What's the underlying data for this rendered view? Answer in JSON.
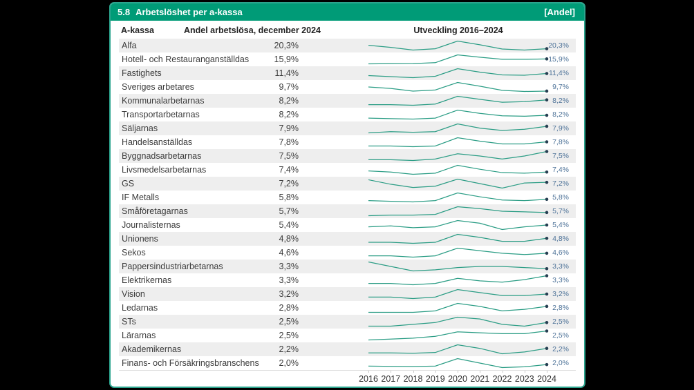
{
  "header": {
    "number": "5.8",
    "title": "Arbetslöshet per a-kassa",
    "unit_tag": "[Andel]"
  },
  "colors": {
    "header_bar": "#009b77",
    "card_border": "#2ca48e",
    "stripe": "#eeeeee",
    "spark_line": "#2b9d85",
    "spark_dot": "#263f52",
    "value_label_blue": "#4d7298"
  },
  "chart_data": {
    "type": "table",
    "title": "5.8 Arbetslöshet per a-kassa",
    "unit_note": "[Andel]",
    "columns": [
      "A-kassa",
      "Andel arbetslösa, december 2024",
      "Utveckling 2016–2024"
    ],
    "x": [
      "2016",
      "2017",
      "2018",
      "2019",
      "2020",
      "2021",
      "2022",
      "2023",
      "2024"
    ],
    "sparkline_type": "line",
    "rows": [
      {
        "name": "Alfa",
        "value_label": "20,3%",
        "value": 20.3,
        "series": [
          21.6,
          20.8,
          19.8,
          20.3,
          23.2,
          21.8,
          20.2,
          19.8,
          20.3
        ]
      },
      {
        "name": "Hotell- och Restauranganställdas",
        "value_label": "15,9%",
        "value": 15.9,
        "series": [
          12.1,
          12.2,
          12.3,
          13.0,
          19.0,
          17.2,
          15.6,
          15.6,
          15.9
        ]
      },
      {
        "name": "Fastighets",
        "value_label": "11,4%",
        "value": 11.4,
        "series": [
          10.8,
          10.5,
          10.2,
          10.6,
          12.8,
          11.8,
          11.0,
          10.9,
          11.4
        ]
      },
      {
        "name": "Sveriges arbetares",
        "value_label": "9,7%",
        "value": 9.7,
        "series": [
          10.8,
          10.4,
          9.7,
          10.0,
          12.0,
          11.0,
          9.9,
          9.6,
          9.7
        ]
      },
      {
        "name": "Kommunalarbetarnas",
        "value_label": "8,2%",
        "value": 8.2,
        "series": [
          7.4,
          7.4,
          7.3,
          7.5,
          8.8,
          8.3,
          7.8,
          7.9,
          8.2
        ]
      },
      {
        "name": "Transportarbetarnas",
        "value_label": "8,2%",
        "value": 8.2,
        "series": [
          7.6,
          7.5,
          7.4,
          7.6,
          9.3,
          8.6,
          8.1,
          8.0,
          8.2
        ]
      },
      {
        "name": "Säljarnas",
        "value_label": "7,9%",
        "value": 7.9,
        "series": [
          6.8,
          7.0,
          6.9,
          7.0,
          8.3,
          7.6,
          7.2,
          7.4,
          7.9
        ]
      },
      {
        "name": "Handelsanställdas",
        "value_label": "7,8%",
        "value": 7.8,
        "series": [
          7.2,
          7.2,
          7.1,
          7.2,
          8.4,
          7.9,
          7.5,
          7.5,
          7.8
        ]
      },
      {
        "name": "Byggnadsarbetarnas",
        "value_label": "7,5%",
        "value": 7.5,
        "series": [
          6.4,
          6.4,
          6.3,
          6.5,
          7.2,
          6.9,
          6.5,
          6.9,
          7.5
        ]
      },
      {
        "name": "Livsmedelsarbetarnas",
        "value_label": "7,4%",
        "value": 7.4,
        "series": [
          7.6,
          7.4,
          7.0,
          7.2,
          8.6,
          7.9,
          7.3,
          7.2,
          7.4
        ]
      },
      {
        "name": "GS",
        "value_label": "7,2%",
        "value": 7.2,
        "series": [
          7.6,
          6.9,
          6.4,
          6.6,
          7.7,
          7.0,
          6.3,
          7.1,
          7.2
        ]
      },
      {
        "name": "IF Metalls",
        "value_label": "5,8%",
        "value": 5.8,
        "series": [
          5.6,
          5.5,
          5.4,
          5.6,
          6.8,
          6.2,
          5.7,
          5.6,
          5.8
        ]
      },
      {
        "name": "Småföretagarnas",
        "value_label": "5,7%",
        "value": 5.7,
        "series": [
          5.2,
          5.3,
          5.3,
          5.4,
          6.6,
          6.3,
          5.9,
          5.8,
          5.7
        ]
      },
      {
        "name": "Journalisternas",
        "value_label": "5,4%",
        "value": 5.4,
        "series": [
          5.2,
          5.3,
          5.1,
          5.2,
          5.9,
          5.6,
          4.9,
          5.2,
          5.4
        ]
      },
      {
        "name": "Unionens",
        "value_label": "4,8%",
        "value": 4.8,
        "series": [
          4.4,
          4.4,
          4.3,
          4.4,
          5.2,
          4.9,
          4.5,
          4.5,
          4.8
        ]
      },
      {
        "name": "Sekos",
        "value_label": "4,6%",
        "value": 4.6,
        "series": [
          4.4,
          4.4,
          4.3,
          4.4,
          5.0,
          4.8,
          4.6,
          4.5,
          4.6
        ]
      },
      {
        "name": "Pappersindustriarbetarnas",
        "value_label": "3,3%",
        "value": 3.3,
        "series": [
          3.9,
          3.5,
          3.1,
          3.2,
          3.4,
          3.5,
          3.5,
          3.4,
          3.3
        ]
      },
      {
        "name": "Elektrikernas",
        "value_label": "3,3%",
        "value": 3.3,
        "series": [
          2.7,
          2.7,
          2.6,
          2.7,
          3.1,
          2.9,
          2.8,
          3.0,
          3.3
        ]
      },
      {
        "name": "Vision",
        "value_label": "3,2%",
        "value": 3.2,
        "series": [
          3.0,
          3.0,
          2.9,
          3.0,
          3.5,
          3.3,
          3.1,
          3.1,
          3.2
        ]
      },
      {
        "name": "Ledarnas",
        "value_label": "2,8%",
        "value": 2.8,
        "series": [
          2.4,
          2.4,
          2.4,
          2.5,
          3.0,
          2.8,
          2.5,
          2.6,
          2.8
        ]
      },
      {
        "name": "STs",
        "value_label": "2,5%",
        "value": 2.5,
        "series": [
          2.3,
          2.3,
          2.4,
          2.5,
          2.8,
          2.7,
          2.4,
          2.3,
          2.5
        ]
      },
      {
        "name": "Lärarnas",
        "value_label": "2,5%",
        "value": 2.5,
        "series": [
          2.0,
          2.05,
          2.1,
          2.2,
          2.45,
          2.4,
          2.35,
          2.35,
          2.5
        ]
      },
      {
        "name": "Akademikernas",
        "value_label": "2,2%",
        "value": 2.2,
        "series": [
          1.95,
          1.95,
          1.93,
          1.97,
          2.4,
          2.2,
          1.9,
          2.0,
          2.2
        ]
      },
      {
        "name": "Finans- och Försäkringsbranschens",
        "value_label": "2,0%",
        "value": 2.0,
        "series": [
          1.9,
          1.88,
          1.87,
          1.9,
          2.4,
          2.1,
          1.8,
          1.85,
          2.0
        ]
      }
    ]
  }
}
